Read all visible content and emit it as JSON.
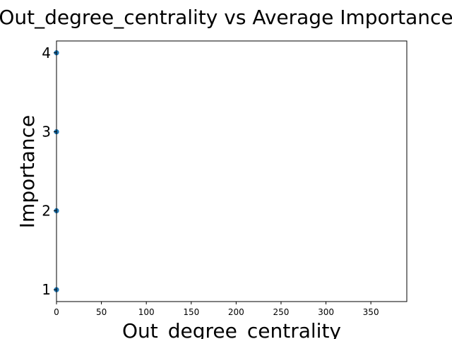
{
  "chart_data": {
    "type": "scatter",
    "title": "Out_degree_centrality vs Average Importance",
    "xlabel": "Out_degree_centrality",
    "ylabel": "Importance",
    "xlim": [
      0,
      390
    ],
    "ylim": [
      0.85,
      4.15
    ],
    "x_ticks": [
      0,
      50,
      100,
      150,
      200,
      250,
      300,
      350
    ],
    "y_ticks": [
      1,
      2,
      3,
      4
    ],
    "grid": false,
    "color": "#1f77b4",
    "points": [
      {
        "x": 0,
        "y": 1
      },
      {
        "x": 0,
        "y": 2
      },
      {
        "x": 0,
        "y": 3
      },
      {
        "x": 0,
        "y": 4
      }
    ]
  }
}
